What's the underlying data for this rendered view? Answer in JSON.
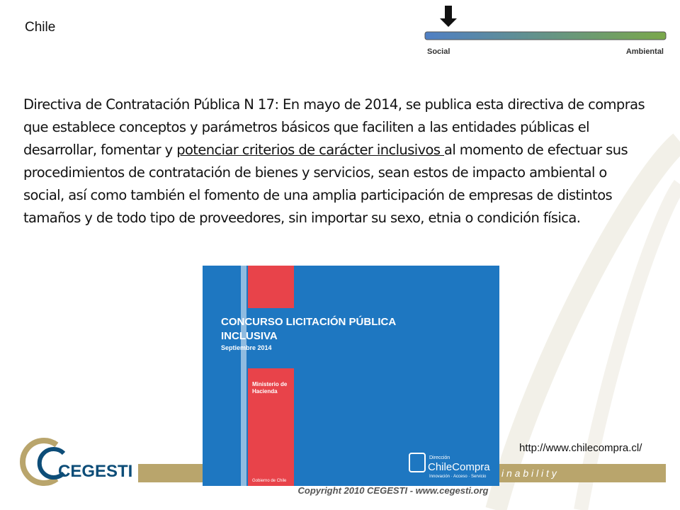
{
  "header": {
    "title": "Chile"
  },
  "scale": {
    "left": "Social",
    "right": "Ambiental"
  },
  "body": {
    "before": "Directiva de Contratación Pública N 17: En mayo de 2014, se publica esta directiva de compras que establece conceptos y parámetros básicos que faciliten a las entidades públicas el desarrollar, fomentar y ",
    "underlined": "potenciar criterios de carácter inclusivos ",
    "after": "al momento de efectuar sus procedimientos de contratación de bienes y servicios, sean estos de impacto ambiental o social, así como también el fomento de una amplia participación de empresas de distintos tamaños y de todo tipo de proveedores, sin importar su sexo, etnia o condición física."
  },
  "cover": {
    "title1": "CONCURSO LICITACIÓN PÚBLICA",
    "title2": "INCLUSIVA",
    "date": "Septiembre 2014",
    "ministry1": "Ministerio de",
    "ministry2": "Hacienda",
    "gov": "Gobierno de Chile",
    "brand_top": "Dirección",
    "brand": "ChileCompra",
    "brand_tag": "Innovación · Acceso · Servicio"
  },
  "source": "http://www.chilecompra.cl/",
  "footer": {
    "logo": "CEGESTI",
    "tagline": "i n a b i l i t y",
    "copyright": "Copyright 2010 CEGESTI - www.cegesti.org"
  }
}
